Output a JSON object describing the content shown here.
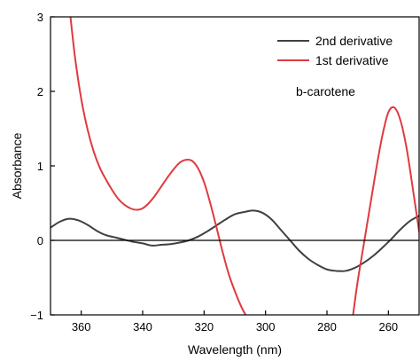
{
  "chart_data": {
    "type": "line",
    "xlabel": "Wavelength (nm)",
    "ylabel": "Absorbance",
    "xlim": [
      370,
      250
    ],
    "ylim": [
      -1,
      3
    ],
    "x_reversed": true,
    "xticks": [
      360,
      340,
      320,
      300,
      280,
      260
    ],
    "yticks": [
      -1,
      0,
      1,
      2,
      3
    ],
    "ytick_labels": [
      "−1",
      "0",
      "1",
      "2",
      "3"
    ],
    "grid": false,
    "legend_position": "top-right",
    "annotation": "b-carotene",
    "zero_line": true,
    "series": [
      {
        "name": "2nd derivative",
        "color": "#404040",
        "x": [
          370,
          367,
          364,
          361,
          358,
          355,
          352,
          349,
          346,
          343,
          340,
          337,
          334,
          331,
          328,
          325,
          322,
          319,
          316,
          313,
          310,
          307,
          304,
          301,
          298,
          295,
          292,
          289,
          286,
          283,
          280,
          277,
          274,
          271,
          268,
          265,
          262,
          259,
          256,
          253,
          250
        ],
        "y": [
          0.17,
          0.25,
          0.29,
          0.27,
          0.21,
          0.13,
          0.07,
          0.04,
          0.01,
          -0.02,
          -0.04,
          -0.07,
          -0.06,
          -0.05,
          -0.03,
          0.0,
          0.05,
          0.12,
          0.2,
          0.28,
          0.35,
          0.38,
          0.4,
          0.37,
          0.28,
          0.14,
          0.0,
          -0.14,
          -0.25,
          -0.33,
          -0.39,
          -0.41,
          -0.41,
          -0.37,
          -0.3,
          -0.21,
          -0.1,
          0.02,
          0.15,
          0.26,
          0.33
        ]
      },
      {
        "name": "1st derivative",
        "color": "#e03a3e",
        "x": [
          363.5,
          362,
          360,
          358,
          356,
          354,
          352,
          350,
          348,
          346,
          344,
          342,
          340,
          338,
          336,
          334,
          332,
          330,
          328,
          326,
          324,
          322,
          320,
          318,
          316,
          314,
          312,
          310,
          308,
          306.5
        ],
        "y": [
          3.0,
          2.45,
          1.9,
          1.5,
          1.2,
          0.98,
          0.82,
          0.68,
          0.56,
          0.48,
          0.43,
          0.41,
          0.43,
          0.5,
          0.6,
          0.72,
          0.84,
          0.95,
          1.04,
          1.08,
          1.07,
          0.97,
          0.78,
          0.5,
          0.18,
          -0.15,
          -0.45,
          -0.68,
          -0.88,
          -1.0
        ]
      },
      {
        "name": "1st derivative",
        "color": "#e03a3e",
        "x": [
          271.5,
          270,
          268,
          266,
          264,
          262,
          260,
          258,
          256,
          254,
          252,
          250
        ],
        "y": [
          -1.0,
          -0.55,
          -0.05,
          0.45,
          0.95,
          1.4,
          1.72,
          1.78,
          1.6,
          1.22,
          0.68,
          0.12
        ]
      }
    ]
  }
}
